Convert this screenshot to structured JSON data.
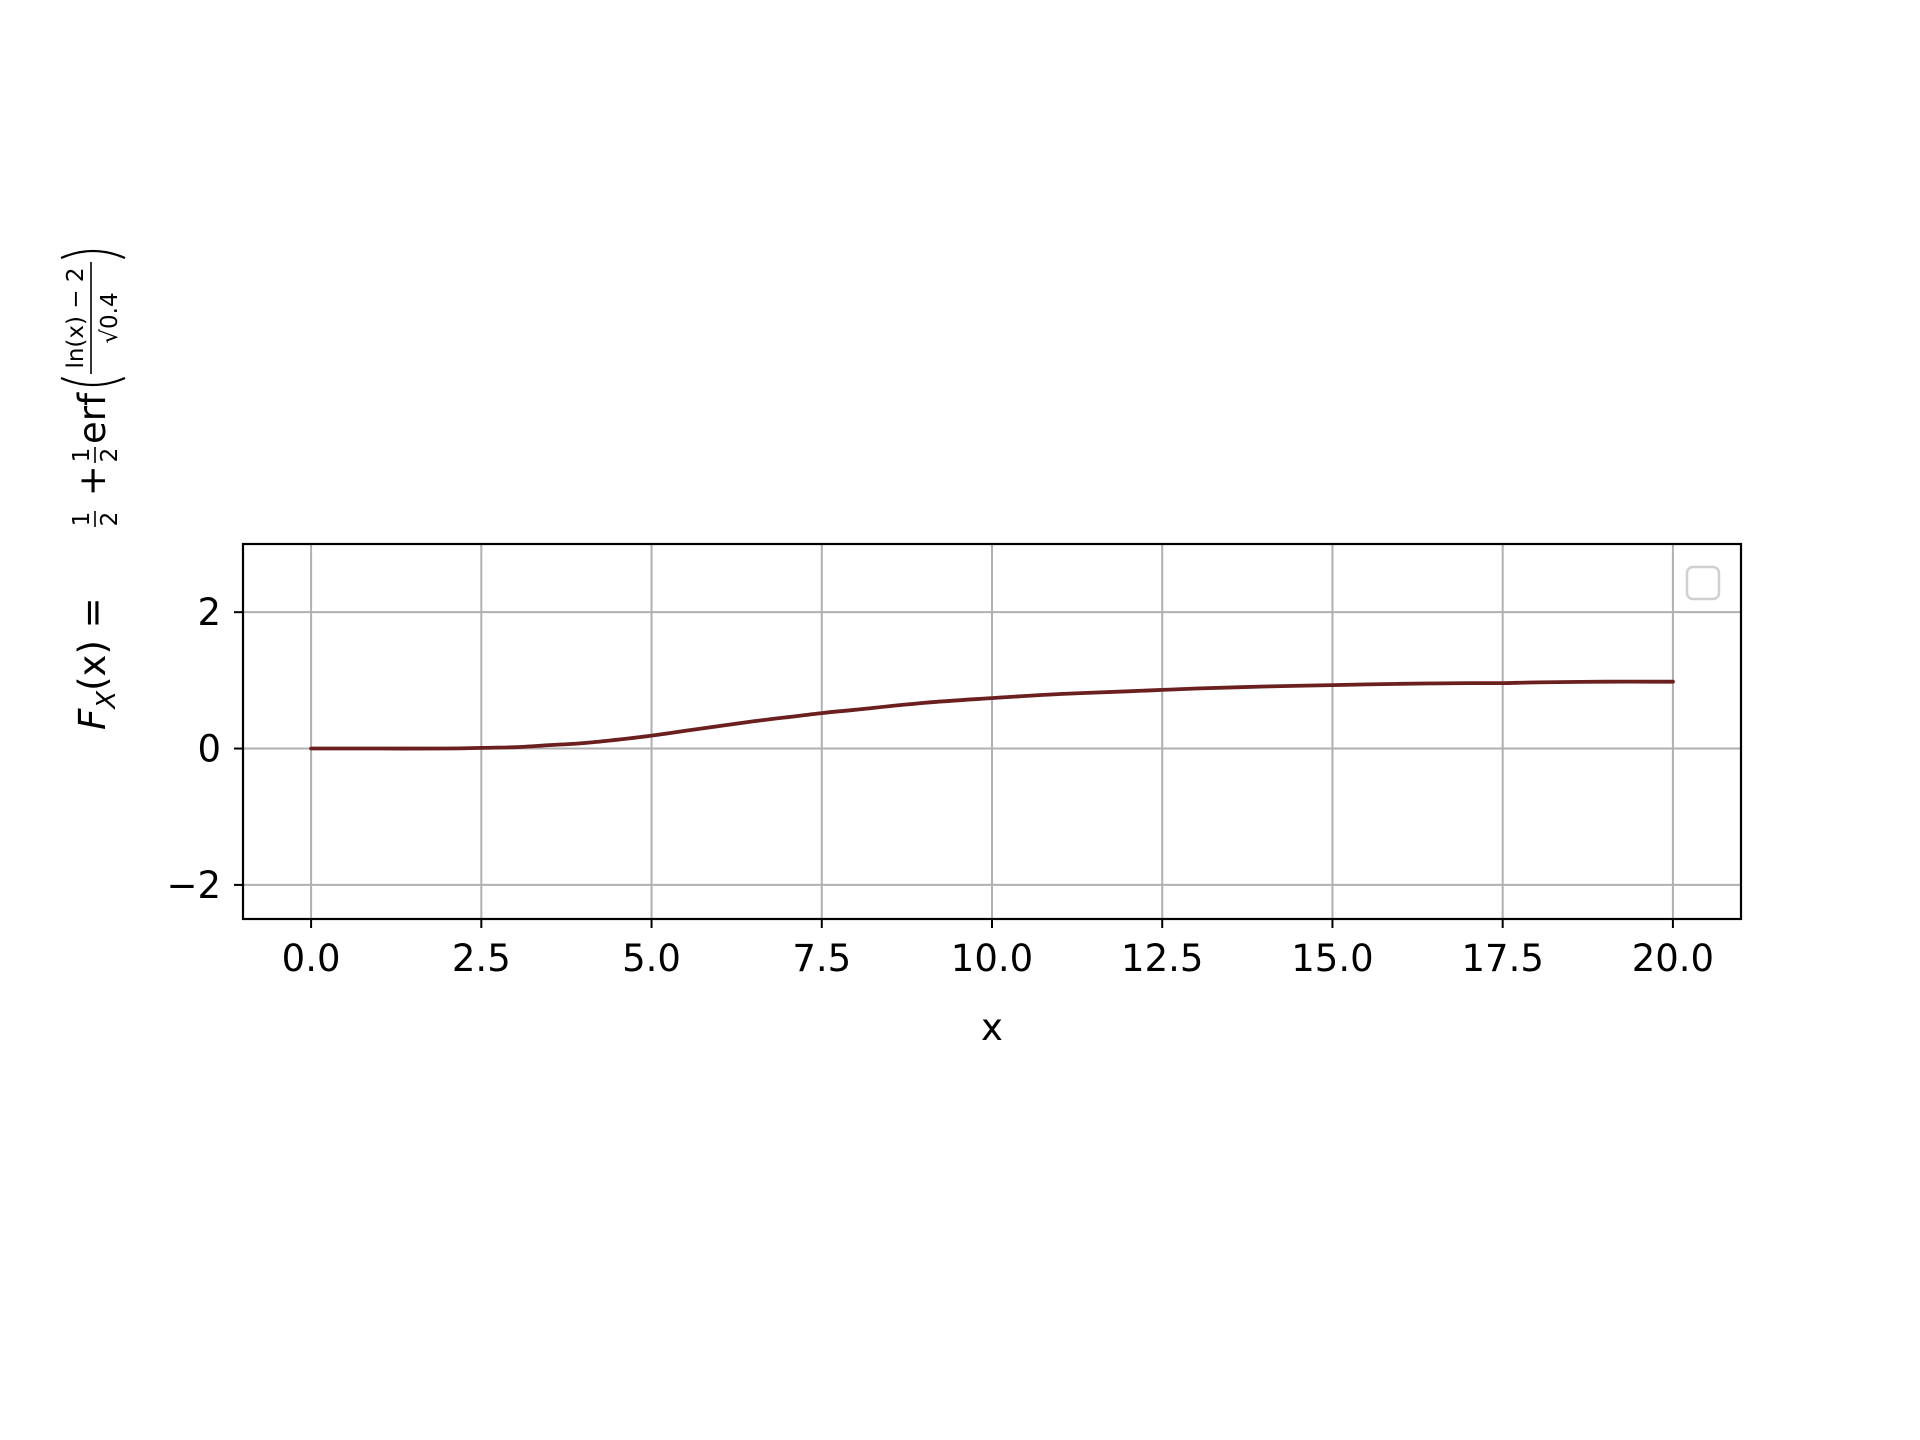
{
  "chart_data": {
    "type": "line",
    "xlabel": "x",
    "ylabel": {
      "lhs": "F",
      "lhs_sub": "X",
      "lhs_arg": "(x) = ",
      "half_num": "1",
      "half_den": "2",
      "plus": " + ",
      "erf": "erf",
      "inner_num": "ln(x) − 2",
      "inner_den": "√0.4"
    },
    "xlim": [
      -1.0,
      21.0
    ],
    "ylim": [
      -2.5,
      3.0
    ],
    "x_ticks": [
      0.0,
      2.5,
      5.0,
      7.5,
      10.0,
      12.5,
      15.0,
      17.5,
      20.0
    ],
    "x_tick_labels": [
      "0.0",
      "2.5",
      "5.0",
      "7.5",
      "10.0",
      "12.5",
      "15.0",
      "17.5",
      "20.0"
    ],
    "y_ticks": [
      -2,
      0,
      2
    ],
    "y_tick_labels": [
      "−2",
      "0",
      "2"
    ],
    "grid": true,
    "legend": {
      "placement": "upper right",
      "entries": []
    },
    "series": [
      {
        "color": "#6b1f1f",
        "x": [
          0.0,
          1.0,
          2.0,
          2.5,
          3.0,
          3.5,
          4.0,
          4.5,
          5.0,
          5.5,
          6.0,
          6.5,
          7.0,
          7.5,
          8.0,
          9.0,
          10.0,
          11.0,
          12.0,
          12.5,
          13.0,
          14.0,
          15.0,
          16.0,
          17.0,
          17.5,
          18.0,
          19.0,
          20.0
        ],
        "y": [
          0.0,
          0.0,
          0.0,
          0.01,
          0.02,
          0.05,
          0.08,
          0.13,
          0.19,
          0.26,
          0.33,
          0.4,
          0.46,
          0.52,
          0.57,
          0.67,
          0.74,
          0.8,
          0.84,
          0.86,
          0.88,
          0.91,
          0.93,
          0.95,
          0.96,
          0.96,
          0.97,
          0.98,
          0.98
        ]
      }
    ]
  }
}
